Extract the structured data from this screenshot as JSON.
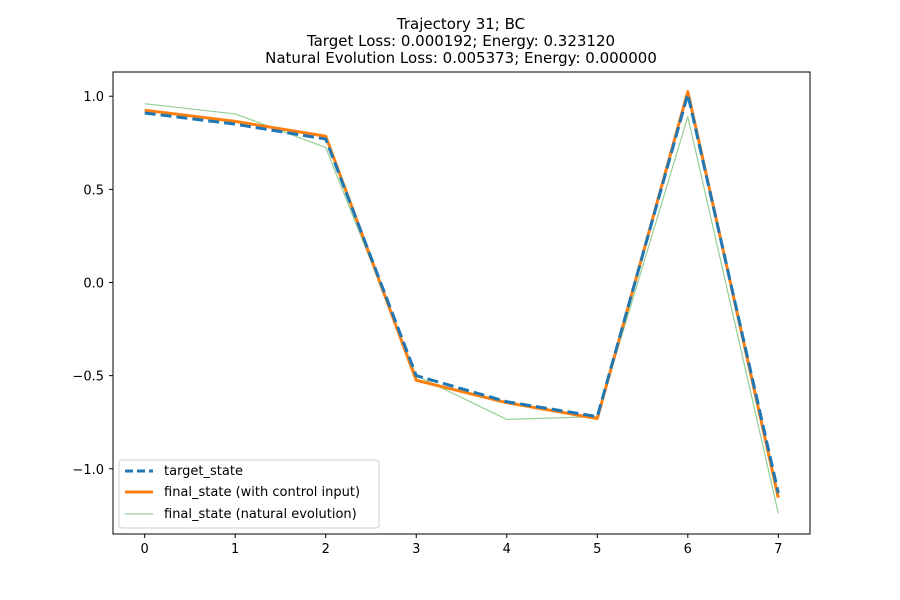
{
  "chart_data": {
    "type": "line",
    "title_lines": [
      "Trajectory 31; BC",
      "Target Loss: 0.000192; Energy: 0.323120",
      "Natural Evolution Loss: 0.005373; Energy: 0.000000"
    ],
    "xlabel": "",
    "ylabel": "",
    "x": [
      0,
      1,
      2,
      3,
      4,
      5,
      6,
      7
    ],
    "xlim": [
      -0.35,
      7.35
    ],
    "ylim": [
      -1.35,
      1.13
    ],
    "x_ticks": [
      0,
      1,
      2,
      3,
      4,
      5,
      6,
      7
    ],
    "x_tick_labels": [
      "0",
      "1",
      "2",
      "3",
      "4",
      "5",
      "6",
      "7"
    ],
    "y_ticks": [
      -1.0,
      -0.5,
      0.0,
      0.5,
      1.0
    ],
    "y_tick_labels": [
      "−1.0",
      "−0.5",
      "0.0",
      "0.5",
      "1.0"
    ],
    "grid": false,
    "legend_position": "lower-left",
    "series": [
      {
        "name": "target_state",
        "color": "#1f77b4",
        "style": "dashed",
        "values": [
          0.91,
          0.85,
          0.77,
          -0.5,
          -0.64,
          -0.72,
          1.01,
          -1.13
        ]
      },
      {
        "name": "final_state (with control input)",
        "color": "#ff7f0e",
        "style": "solid-thick",
        "values": [
          0.925,
          0.865,
          0.785,
          -0.525,
          -0.645,
          -0.73,
          1.025,
          -1.155
        ]
      },
      {
        "name": "final_state (natural evolution)",
        "color": "#2ca02c",
        "style": "solid-thin",
        "values": [
          0.96,
          0.905,
          0.725,
          -0.5,
          -0.735,
          -0.72,
          0.89,
          -1.24
        ]
      }
    ]
  }
}
